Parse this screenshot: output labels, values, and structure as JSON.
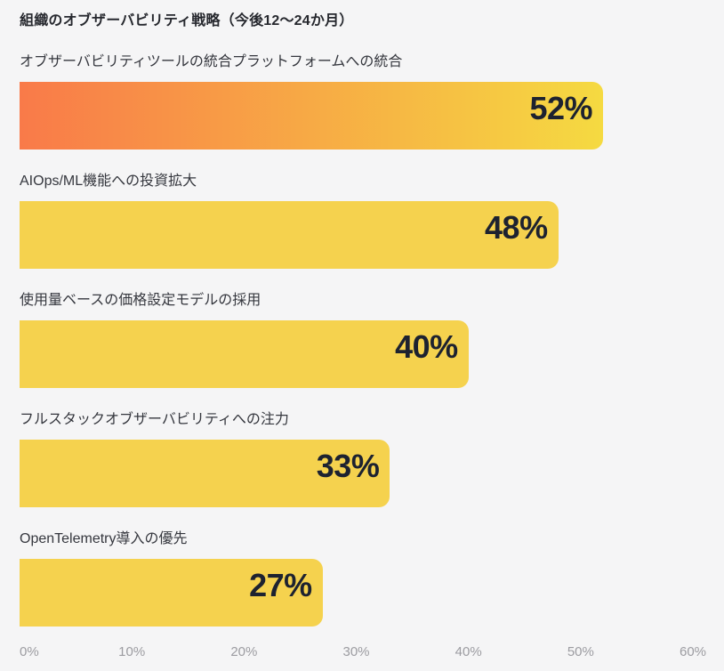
{
  "chart_data": {
    "type": "bar",
    "orientation": "horizontal",
    "title": "組織のオブザーバビリティ戦略（今後12〜24か月）",
    "categories": [
      "オブザーバビリティツールの統合プラットフォームへの統合",
      "AIOps/ML機能への投資拡大",
      "使用量ベースの価格設定モデルの採用",
      "フルスタックオブザーバビリティへの注力",
      "OpenTelemetry導入の優先"
    ],
    "values": [
      52,
      48,
      40,
      33,
      27
    ],
    "value_labels": [
      "52%",
      "48%",
      "40%",
      "33%",
      "27%"
    ],
    "xlim": [
      0,
      60
    ],
    "x_ticks": [
      0,
      10,
      20,
      30,
      40,
      50,
      60
    ],
    "x_tick_labels": [
      "0%",
      "10%",
      "20%",
      "30%",
      "40%",
      "50%",
      "60%"
    ],
    "xlabel": "",
    "ylabel": "",
    "grid": false,
    "legend": false,
    "highlighted_bar_index": 0
  },
  "theme": {
    "bg": "#f5f5f6",
    "bar-yellow": "#f5d24e",
    "grad-start": "#f97a49",
    "grad-end": "#f5da41",
    "title-color": "#26282e",
    "label-color": "#35373e",
    "value-color": "#1d2230",
    "axis-color": "#9c9ca1"
  }
}
